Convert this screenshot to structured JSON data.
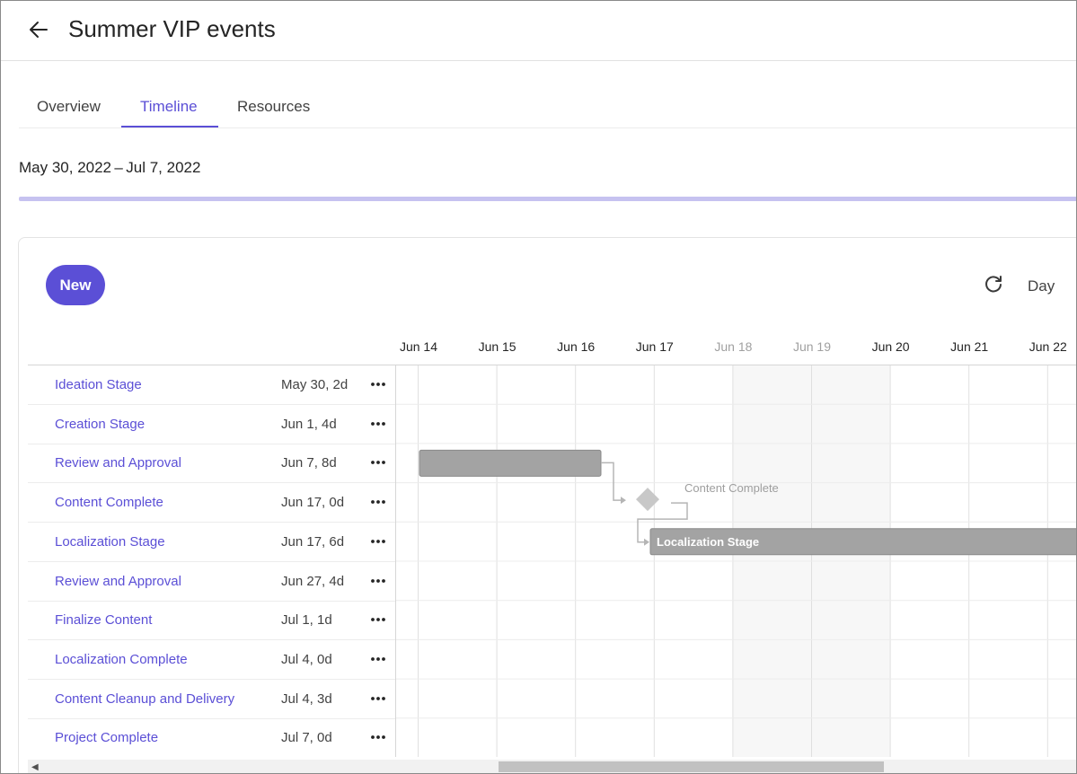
{
  "page": {
    "title": "Summer VIP events"
  },
  "tabs": [
    {
      "label": "Overview"
    },
    {
      "label": "Timeline"
    },
    {
      "label": "Resources"
    }
  ],
  "active_tab": "Timeline",
  "date_range": "May 30, 2022 – Jul 7, 2022",
  "toolbar": {
    "new_label": "New",
    "view_label": "Day"
  },
  "timeline": {
    "dates": [
      {
        "label": "Jun 14",
        "weekend": false
      },
      {
        "label": "Jun 15",
        "weekend": false
      },
      {
        "label": "Jun 16",
        "weekend": false
      },
      {
        "label": "Jun 17",
        "weekend": false
      },
      {
        "label": "Jun 18",
        "weekend": true
      },
      {
        "label": "Jun 19",
        "weekend": true
      },
      {
        "label": "Jun 20",
        "weekend": false
      },
      {
        "label": "Jun 21",
        "weekend": false
      },
      {
        "label": "Jun 22",
        "weekend": false
      }
    ],
    "bar_color": "#a3a3a3",
    "milestone_color": "#c8c8c8",
    "milestone_label": "Content Complete",
    "bar_label": "Localization Stage"
  },
  "tasks": [
    {
      "name": "Ideation Stage",
      "meta": "May 30, 2d"
    },
    {
      "name": "Creation Stage",
      "meta": "Jun 1, 4d"
    },
    {
      "name": "Review and Approval",
      "meta": "Jun 7, 8d"
    },
    {
      "name": "Content Complete",
      "meta": "Jun 17, 0d"
    },
    {
      "name": "Localization Stage",
      "meta": "Jun 17, 6d"
    },
    {
      "name": "Review and Approval",
      "meta": "Jun 27, 4d"
    },
    {
      "name": "Finalize Content",
      "meta": "Jul 1, 1d"
    },
    {
      "name": "Localization Complete",
      "meta": "Jul 4, 0d"
    },
    {
      "name": "Content Cleanup and Delivery",
      "meta": "Jul 4, 3d"
    },
    {
      "name": "Project Complete",
      "meta": "Jul 7, 0d"
    }
  ],
  "icons": {
    "back": "arrow-left-icon",
    "refresh": "refresh-icon",
    "more": "more-horizontal-icon"
  },
  "colors": {
    "accent": "#5b4fd6",
    "progress_track": "#c6c2f0"
  }
}
